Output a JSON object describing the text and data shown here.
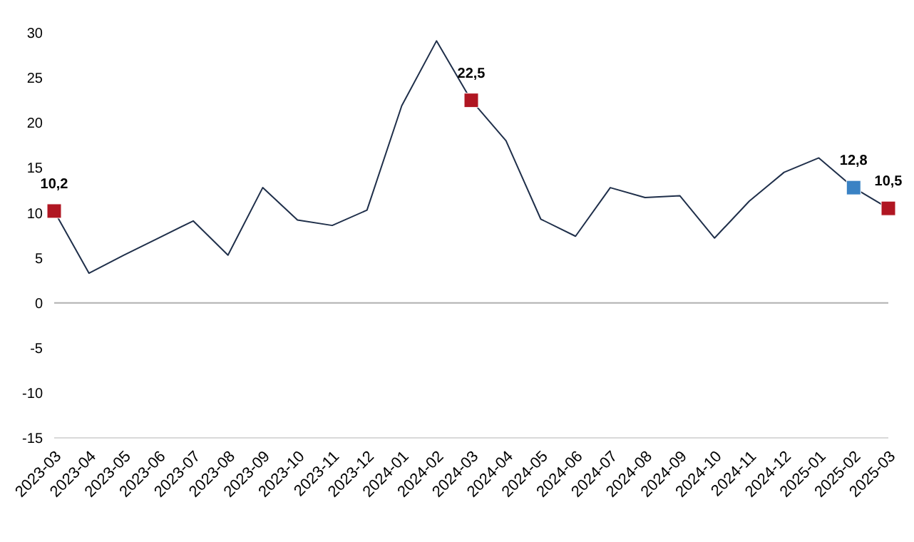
{
  "chart_data": {
    "type": "line",
    "categories": [
      "2023-03",
      "2023-04",
      "2023-05",
      "2023-06",
      "2023-07",
      "2023-08",
      "2023-09",
      "2023-10",
      "2023-11",
      "2023-12",
      "2024-01",
      "2024-02",
      "2024-03",
      "2024-04",
      "2024-05",
      "2024-06",
      "2024-07",
      "2024-08",
      "2024-09",
      "2024-10",
      "2024-11",
      "2024-12",
      "2025-01",
      "2025-02",
      "2025-03"
    ],
    "series": [
      {
        "color": "#1f2f4a",
        "values": [
          10.2,
          3.3,
          5.3,
          7.2,
          9.1,
          5.3,
          12.8,
          9.2,
          8.6,
          10.3,
          21.9,
          29.1,
          22.5,
          18.0,
          9.3,
          7.4,
          12.8,
          11.7,
          11.9,
          7.2,
          11.3,
          14.5,
          16.1,
          12.8,
          10.5
        ],
        "colors": [
          "#b01622",
          null,
          null,
          null,
          null,
          null,
          null,
          null,
          null,
          null,
          null,
          null,
          "#b01622",
          null,
          null,
          null,
          null,
          null,
          null,
          null,
          null,
          null,
          null,
          "#3a82c4",
          "#b01622"
        ],
        "value_labels": [
          "10,2",
          null,
          null,
          null,
          null,
          null,
          null,
          null,
          null,
          null,
          null,
          null,
          "22,5",
          null,
          null,
          null,
          null,
          null,
          null,
          null,
          null,
          null,
          null,
          "12,8",
          "10,5"
        ]
      }
    ],
    "ylim": [
      -15,
      30
    ],
    "yticks": [
      -15,
      -10,
      -5,
      0,
      5,
      10,
      15,
      20,
      25,
      30
    ],
    "ref_lines": [
      {
        "axis": "y",
        "value": 0,
        "color": "#b0b0b0"
      }
    ],
    "grid": false,
    "legend": false
  }
}
